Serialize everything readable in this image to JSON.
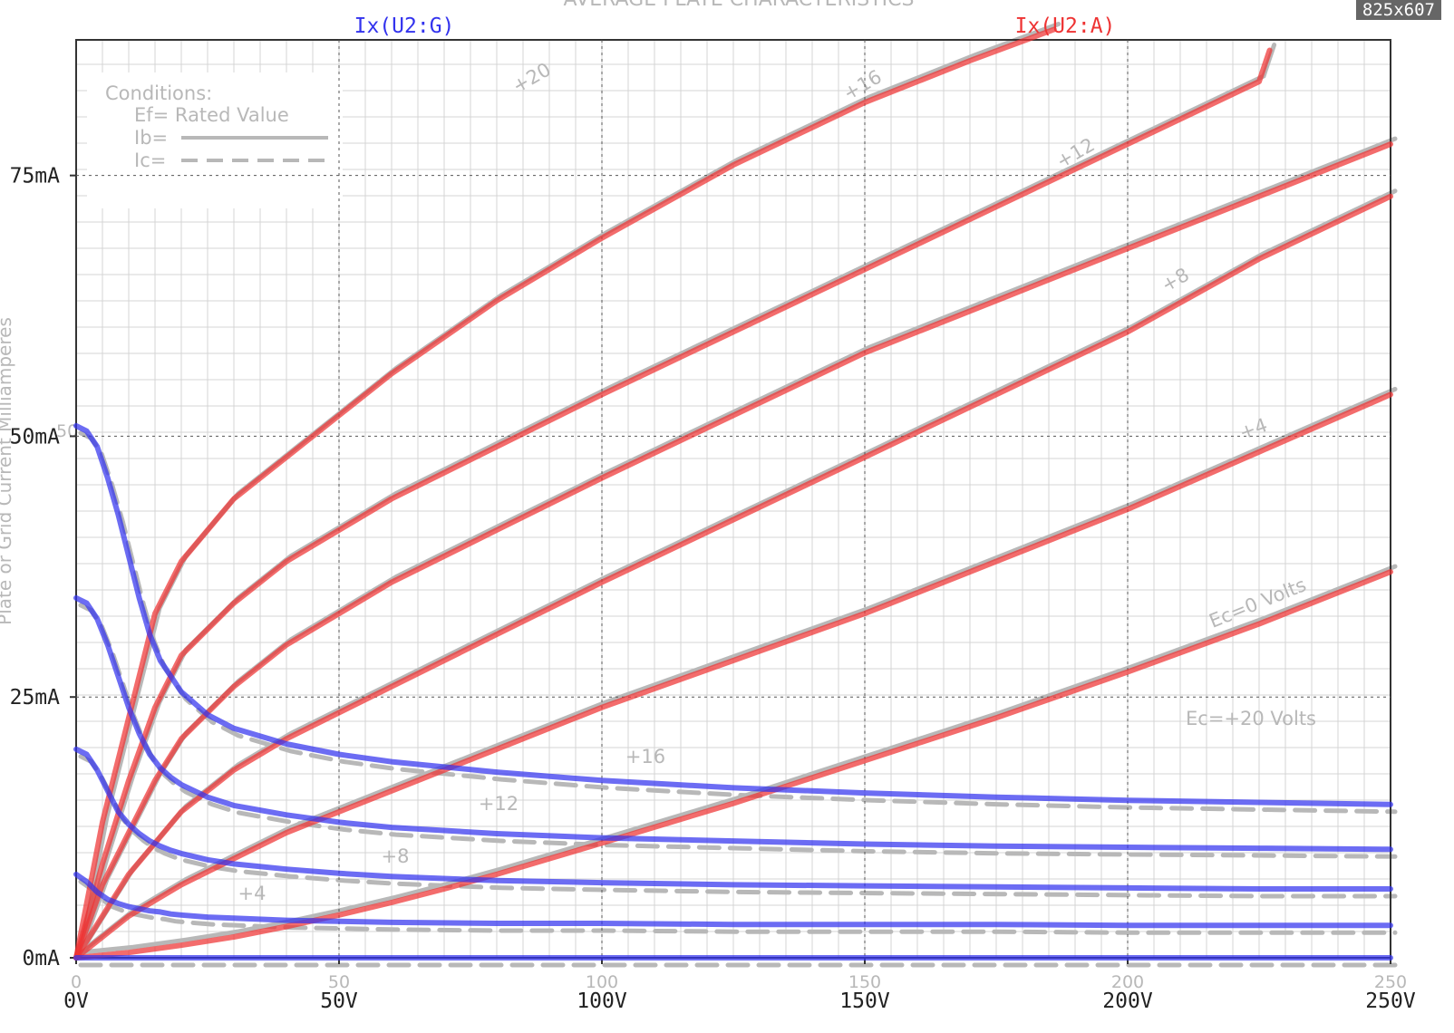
{
  "badge": "825x607",
  "legend": {
    "grid_trace": "Ix(U2:G)",
    "anode_trace": "Ix(U2:A)",
    "grid_color": "#3333ee",
    "anode_color": "#ee3333"
  },
  "background_datasheet": {
    "title": "AVERAGE PLATE CHARACTERISTICS",
    "y_caption": "Plate or Grid Current Milliamperes",
    "conditions_heading": "Conditions:",
    "conditions_ef": "Ef= Rated Value",
    "conditions_ib": "Ib=",
    "conditions_ic": "Ic=",
    "plate_labels": [
      "+20",
      "+16",
      "+12",
      "+8",
      "+4",
      "Ec=0 Volts"
    ],
    "grid_labels": [
      "Ec=+20 Volts",
      "+16",
      "+12",
      "+8",
      "+4"
    ],
    "scale_labels": [
      "0",
      "50",
      "100",
      "150",
      "200",
      "250"
    ],
    "scale_label_y": "50",
    "line_color": "#b8b8b8"
  },
  "chart_data": {
    "type": "line",
    "title": "",
    "xlabel": "",
    "ylabel": "",
    "x_unit": "V",
    "y_unit": "mA",
    "xlim": [
      0,
      250
    ],
    "ylim": [
      0,
      88
    ],
    "x_ticks": [
      0,
      50,
      100,
      150,
      200,
      250
    ],
    "x_tick_labels": [
      "0V",
      "50V",
      "100V",
      "150V",
      "200V",
      "250V"
    ],
    "y_ticks": [
      0,
      25,
      50,
      75
    ],
    "y_tick_labels": [
      "0mA",
      "25mA",
      "50mA",
      "75mA"
    ],
    "grid": true,
    "legend_position": "top",
    "series": [
      {
        "name": "Ix(U2:A)",
        "group": "anode",
        "param": "+20",
        "x": [
          0,
          5,
          10,
          15,
          20,
          30,
          40,
          60,
          80,
          100,
          125,
          150,
          170,
          186
        ],
        "y": [
          0,
          13,
          23,
          33,
          38,
          44,
          48,
          56,
          63,
          69,
          76,
          82,
          86,
          89
        ]
      },
      {
        "name": "Ix(U2:A)",
        "group": "anode",
        "param": "+16",
        "x": [
          0,
          5,
          10,
          15,
          20,
          30,
          40,
          60,
          80,
          100,
          125,
          150,
          175,
          200,
          225,
          227
        ],
        "y": [
          0,
          9,
          17,
          24,
          29,
          34,
          38,
          44,
          49,
          54,
          60,
          66,
          72,
          78,
          84,
          87
        ]
      },
      {
        "name": "Ix(U2:A)",
        "group": "anode",
        "param": "+12",
        "x": [
          0,
          5,
          10,
          15,
          20,
          30,
          40,
          60,
          80,
          100,
          125,
          150,
          175,
          200,
          225,
          250
        ],
        "y": [
          0,
          7,
          12,
          17,
          21,
          26,
          30,
          36,
          41,
          46,
          52,
          58,
          63,
          68,
          73,
          78
        ]
      },
      {
        "name": "Ix(U2:A)",
        "group": "anode",
        "param": "+8",
        "x": [
          0,
          5,
          10,
          15,
          20,
          30,
          40,
          60,
          80,
          100,
          125,
          150,
          175,
          200,
          225,
          250
        ],
        "y": [
          0,
          4,
          8,
          11,
          14,
          18,
          21,
          26,
          31,
          36,
          42,
          48,
          54,
          60,
          67,
          73
        ]
      },
      {
        "name": "Ix(U2:A)",
        "group": "anode",
        "param": "+4",
        "x": [
          0,
          5,
          10,
          15,
          20,
          30,
          40,
          60,
          80,
          100,
          125,
          150,
          175,
          200,
          225,
          250
        ],
        "y": [
          0,
          2,
          4,
          5.5,
          7,
          9.5,
          12,
          16,
          20,
          24,
          28.5,
          33,
          38,
          43,
          48.5,
          54
        ]
      },
      {
        "name": "Ix(U2:A)",
        "group": "anode",
        "param": "0",
        "x": [
          0,
          10,
          20,
          30,
          40,
          50,
          60,
          70,
          80,
          90,
          100,
          125,
          150,
          175,
          200,
          225,
          250
        ],
        "y": [
          0,
          0.5,
          1.2,
          2,
          3,
          4.1,
          5.3,
          6.6,
          8,
          9.5,
          11,
          14.8,
          18.9,
          23,
          27.4,
          32,
          37
        ]
      },
      {
        "name": "Ix(U2:G)",
        "group": "grid",
        "param": "+20",
        "x": [
          0,
          2,
          4,
          6,
          8,
          10,
          12,
          14,
          16,
          18,
          20,
          25,
          30,
          40,
          50,
          60,
          80,
          100,
          125,
          150,
          175,
          200,
          225,
          250
        ],
        "y": [
          51,
          50.5,
          49,
          46,
          42.5,
          38.5,
          34.5,
          31,
          28.5,
          27,
          25.5,
          23.3,
          22,
          20.5,
          19.5,
          18.8,
          17.8,
          17,
          16.3,
          15.8,
          15.4,
          15.1,
          14.9,
          14.7
        ]
      },
      {
        "name": "Ix(U2:G)",
        "group": "grid",
        "param": "+16",
        "x": [
          0,
          2,
          4,
          6,
          8,
          10,
          12,
          14,
          16,
          18,
          20,
          25,
          30,
          40,
          50,
          60,
          80,
          100,
          125,
          150,
          175,
          200,
          225,
          250
        ],
        "y": [
          34.5,
          34,
          32.5,
          30,
          27,
          24,
          21.5,
          19.5,
          18.2,
          17.3,
          16.6,
          15.4,
          14.6,
          13.7,
          13,
          12.5,
          11.9,
          11.5,
          11.2,
          10.9,
          10.7,
          10.6,
          10.5,
          10.4
        ]
      },
      {
        "name": "Ix(U2:G)",
        "group": "grid",
        "param": "+12",
        "x": [
          0,
          2,
          4,
          6,
          8,
          10,
          12,
          14,
          16,
          18,
          20,
          25,
          30,
          40,
          50,
          60,
          80,
          100,
          125,
          150,
          175,
          200,
          225,
          250
        ],
        "y": [
          20,
          19.5,
          18,
          16,
          14,
          12.8,
          11.9,
          11.2,
          10.7,
          10.3,
          10,
          9.4,
          9,
          8.5,
          8.1,
          7.8,
          7.4,
          7.2,
          7,
          6.9,
          6.8,
          6.7,
          6.6,
          6.6
        ]
      },
      {
        "name": "Ix(U2:G)",
        "group": "grid",
        "param": "+8",
        "x": [
          0,
          2,
          4,
          6,
          8,
          10,
          12,
          14,
          16,
          18,
          20,
          25,
          30,
          40,
          50,
          60,
          80,
          100,
          125,
          150,
          175,
          200,
          225,
          250
        ],
        "y": [
          8,
          7.3,
          6.3,
          5.6,
          5.2,
          4.9,
          4.7,
          4.5,
          4.4,
          4.2,
          4.1,
          3.9,
          3.8,
          3.6,
          3.5,
          3.4,
          3.3,
          3.3,
          3.2,
          3.2,
          3.2,
          3.1,
          3.1,
          3.1
        ]
      },
      {
        "name": "Ix(U2:G)",
        "group": "grid",
        "param": "+4",
        "x": [
          0,
          250
        ],
        "y": [
          0,
          0
        ]
      }
    ]
  }
}
